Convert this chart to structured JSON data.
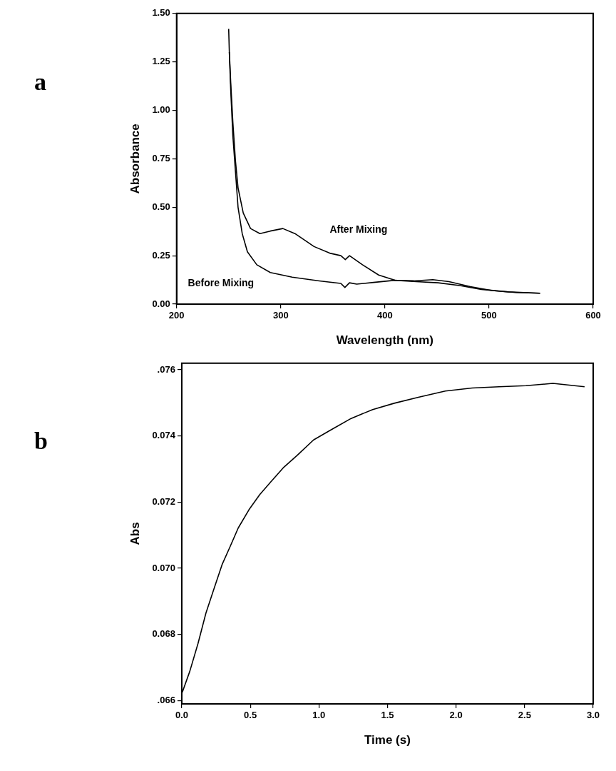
{
  "chart_data": [
    {
      "type": "line",
      "title": "a",
      "xlabel": "Wavelength (nm)",
      "ylabel": "Absorbance",
      "xlim": [
        200,
        600
      ],
      "ylim": [
        0,
        1.5
      ],
      "xticks": [
        200,
        300,
        400,
        500,
        600
      ],
      "yticks": [
        {
          "value": 0,
          "label": "0.00"
        },
        {
          "value": 0.25,
          "label": "0.25"
        },
        {
          "value": 0.5,
          "label": "0.50"
        },
        {
          "value": 0.75,
          "label": "0.75"
        },
        {
          "value": 1,
          "label": "1.00"
        },
        {
          "value": 1.25,
          "label": "1.25"
        },
        {
          "value": 1.5,
          "label": "1.50"
        }
      ],
      "grid": false,
      "legend": false,
      "marker": "none",
      "series": [
        {
          "name": "After Mixing",
          "color": "#000000",
          "x": [
            250,
            250.6,
            252,
            254,
            256.5,
            259,
            264,
            271,
            280,
            290,
            302,
            313.6,
            332,
            347,
            357.7,
            362,
            366,
            378.5,
            394,
            409.6,
            427.8,
            446,
            461.5,
            482,
            503,
            526,
            549
          ],
          "values": [
            1.42,
            1.306,
            1.14,
            0.94,
            0.74,
            0.6,
            0.47,
            0.39,
            0.364,
            0.377,
            0.39,
            0.364,
            0.297,
            0.263,
            0.25,
            0.23,
            0.25,
            0.203,
            0.15,
            0.123,
            0.12,
            0.126,
            0.116,
            0.09,
            0.07,
            0.06,
            0.056
          ]
        },
        {
          "name": "Before Mixing",
          "color": "#000000",
          "x": [
            250.6,
            252,
            254,
            256.5,
            259,
            263,
            268,
            277,
            290,
            311,
            337,
            357.7,
            361.6,
            366,
            373,
            389,
            409.6,
            430,
            451,
            472,
            492.6,
            518.5,
            549
          ],
          "values": [
            1.3,
            1.1,
            0.87,
            0.685,
            0.5,
            0.364,
            0.27,
            0.203,
            0.163,
            0.139,
            0.12,
            0.107,
            0.086,
            0.11,
            0.103,
            0.112,
            0.123,
            0.116,
            0.11,
            0.096,
            0.076,
            0.063,
            0.056
          ]
        }
      ]
    },
    {
      "type": "line",
      "title": "b",
      "xlabel": "Time (s)",
      "ylabel": "Abs",
      "xlim": [
        0,
        3.0
      ],
      "ylim": [
        0.0659,
        0.0762
      ],
      "xticks": [
        {
          "value": 0,
          "label": "0.0"
        },
        {
          "value": 0.5,
          "label": "0.5"
        },
        {
          "value": 1,
          "label": "1.0"
        },
        {
          "value": 1.5,
          "label": "1.5"
        },
        {
          "value": 2,
          "label": "2.0"
        },
        {
          "value": 2.5,
          "label": "2.5"
        },
        {
          "value": 3,
          "label": "3.0"
        }
      ],
      "yticks": [
        {
          "value": 0.066,
          "label": ".066"
        },
        {
          "value": 0.068,
          "label": "0.068"
        },
        {
          "value": 0.07,
          "label": "0.070"
        },
        {
          "value": 0.072,
          "label": "0.072"
        },
        {
          "value": 0.074,
          "label": "0.074"
        },
        {
          "value": 0.076,
          "label": ".076"
        }
      ],
      "grid": false,
      "legend": false,
      "marker": "none",
      "series": [
        {
          "color": "#000000",
          "x": [
            0.004,
            0.059,
            0.118,
            0.176,
            0.235,
            0.294,
            0.353,
            0.412,
            0.49,
            0.569,
            0.647,
            0.745,
            0.843,
            0.961,
            1.078,
            1.235,
            1.392,
            1.549,
            1.725,
            1.922,
            2.118,
            2.314,
            2.51,
            2.706,
            2.937
          ],
          "values": [
            0.06625,
            0.06689,
            0.06772,
            0.06864,
            0.06938,
            0.07011,
            0.07066,
            0.07122,
            0.07177,
            0.07223,
            0.0726,
            0.07306,
            0.07342,
            0.07388,
            0.07416,
            0.07453,
            0.0748,
            0.07499,
            0.07517,
            0.07536,
            0.07545,
            0.07549,
            0.07552,
            0.07559,
            0.07549
          ]
        }
      ]
    }
  ]
}
